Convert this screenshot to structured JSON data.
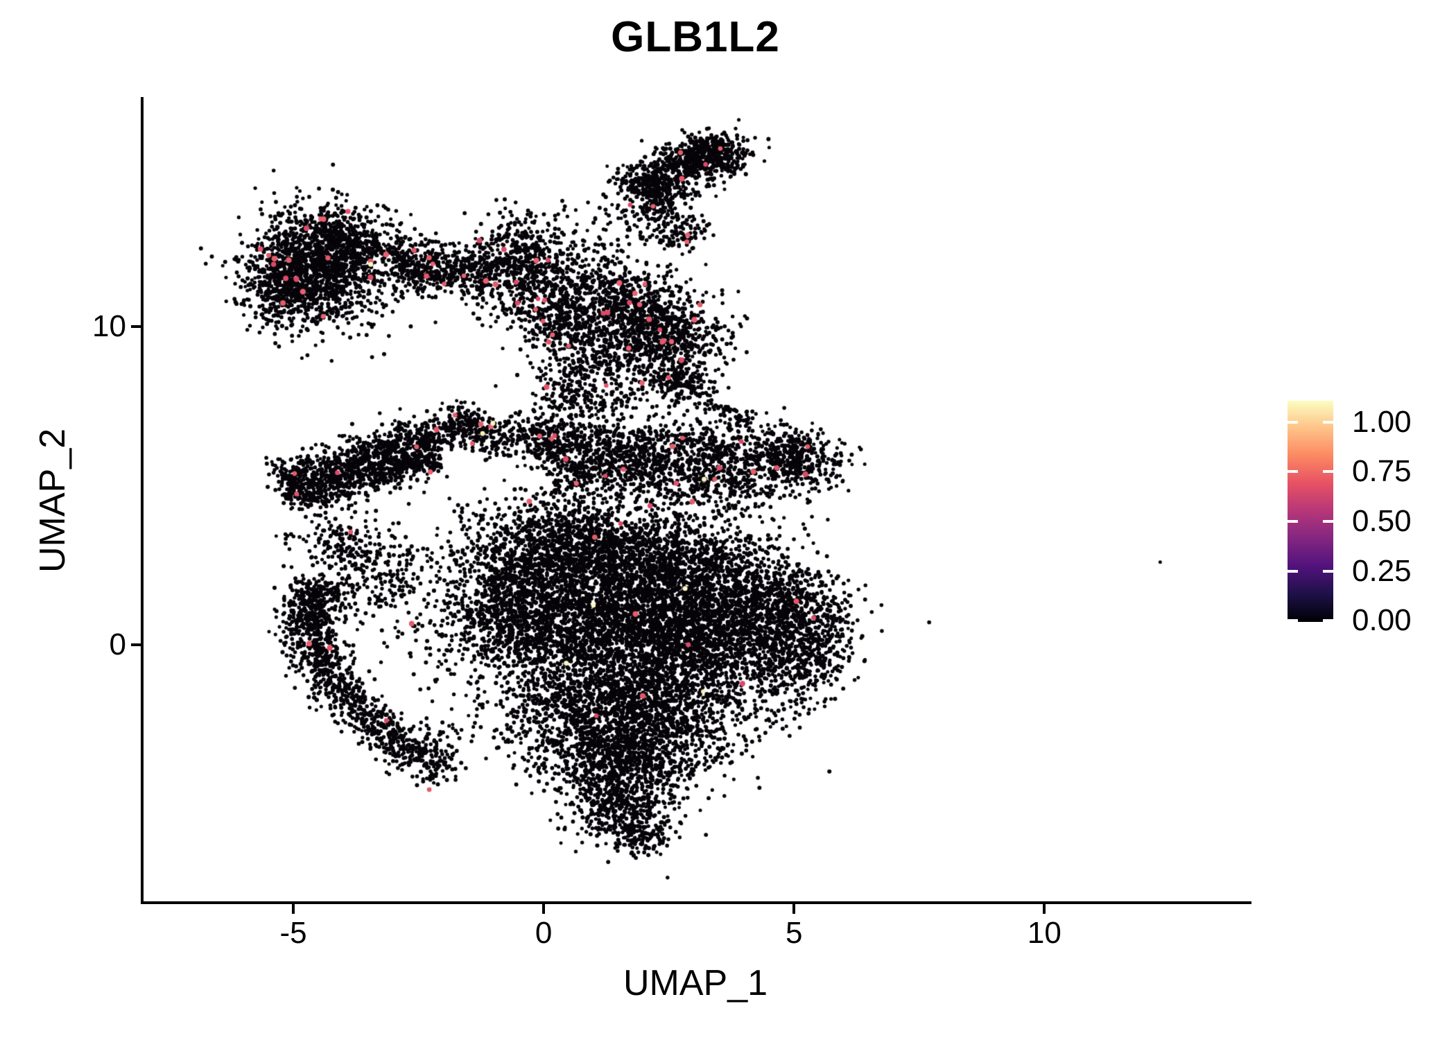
{
  "chart_data": {
    "type": "scatter",
    "title": "GLB1L2",
    "xlabel": "UMAP_1",
    "ylabel": "UMAP_2",
    "xlim": [
      -8.02,
      14.08
    ],
    "ylim": [
      -8.1,
      17.17
    ],
    "grid": false,
    "x_ticks": [
      {
        "label": "-5",
        "value": -5
      },
      {
        "label": "0",
        "value": 0
      },
      {
        "label": "5",
        "value": 5
      },
      {
        "label": "10",
        "value": 10
      }
    ],
    "y_ticks": [
      {
        "label": "10",
        "value": 10
      },
      {
        "label": "0",
        "value": 0
      }
    ],
    "legend": {
      "position": "right",
      "colormap": "magma",
      "gradient_stops": [
        "#000004",
        "#1D1147",
        "#51127C",
        "#822681",
        "#B63679",
        "#E65164",
        "#FB8861",
        "#FEC287",
        "#FCFDBF"
      ],
      "tick_color": "#FFFFFF",
      "ticks": [
        {
          "label": "1.00",
          "value": 1.0
        },
        {
          "label": "0.75",
          "value": 0.75
        },
        {
          "label": "0.50",
          "value": 0.5
        },
        {
          "label": "0.25",
          "value": 0.25
        },
        {
          "label": "0.00",
          "value": 0.0
        }
      ]
    },
    "point_style": {
      "base_color": "#060409",
      "base_radius": 2.7,
      "accent_pink_colors": [
        "#E8546B",
        "#DE4968",
        "#EC5F72",
        "#E35D6A"
      ],
      "accent_yellow_colors": [
        "#F8F1B3",
        "#FCF6C0"
      ],
      "accent_pink_count": 112,
      "accent_yellow_count": 8
    },
    "seed": 42,
    "approx_cells": 23000,
    "clusters": [
      {
        "name": "topleft-blob",
        "kind": "gauss",
        "cx": -4.55,
        "cy": 11.9,
        "sx": 0.7,
        "sy": 0.92,
        "n": 1500,
        "pw": 22,
        "yw": 1
      },
      {
        "name": "topleft-fringe-left",
        "kind": "gauss",
        "cx": -5.25,
        "cy": 11.15,
        "sx": 0.38,
        "sy": 0.5,
        "n": 200,
        "pw": 2,
        "yw": 0
      },
      {
        "name": "topleft-fringe-top",
        "kind": "gauss",
        "cx": -3.85,
        "cy": 12.55,
        "sx": 0.5,
        "sy": 0.5,
        "n": 260,
        "pw": 3,
        "yw": 0
      },
      {
        "name": "trail-band",
        "kind": "band",
        "x1": -3.05,
        "y1": 12.35,
        "x2": -1.1,
        "y2": 11.55,
        "s": 0.33,
        "n": 380,
        "pw": 6,
        "yw": 0
      },
      {
        "name": "trail-blob",
        "kind": "gauss",
        "cx": -2.5,
        "cy": 11.5,
        "sx": 0.32,
        "sy": 0.3,
        "n": 130,
        "pw": 1,
        "yw": 0
      },
      {
        "name": "mid-cluster",
        "kind": "gauss",
        "cx": -0.45,
        "cy": 11.9,
        "sx": 0.55,
        "sy": 0.78,
        "n": 650,
        "pw": 8,
        "yw": 0
      },
      {
        "name": "mid-descender",
        "kind": "band",
        "x1": -0.05,
        "y1": 10.75,
        "x2": 0.6,
        "y2": 9.3,
        "s": 0.38,
        "n": 220,
        "pw": 3,
        "yw": 0
      },
      {
        "name": "mid-right-sparse",
        "kind": "gauss",
        "cx": 0.85,
        "cy": 11.7,
        "sx": 0.42,
        "sy": 0.55,
        "n": 90,
        "pw": 1,
        "yw": 0
      },
      {
        "name": "hat-band",
        "kind": "band",
        "x1": 1.75,
        "y1": 14.35,
        "x2": 3.55,
        "y2": 15.5,
        "s": 0.34,
        "n": 560,
        "pw": 3,
        "yw": 0
      },
      {
        "name": "hat-blob",
        "kind": "gauss",
        "cx": 3.35,
        "cy": 15.45,
        "sx": 0.42,
        "sy": 0.33,
        "n": 260,
        "pw": 1,
        "yw": 0
      },
      {
        "name": "hat-arm",
        "kind": "band",
        "x1": 2.0,
        "y1": 14.55,
        "x2": 2.55,
        "y2": 13.85,
        "s": 0.25,
        "n": 130,
        "pw": 1,
        "yw": 0
      },
      {
        "name": "hat-trail",
        "kind": "band",
        "x1": 2.05,
        "y1": 13.75,
        "x2": 2.95,
        "y2": 12.65,
        "s": 0.3,
        "n": 170,
        "pw": 2,
        "yw": 0
      },
      {
        "name": "above-mid-sparse",
        "kind": "gauss",
        "cx": 1.3,
        "cy": 13.2,
        "sx": 0.5,
        "sy": 0.6,
        "n": 60,
        "pw": 0,
        "yw": 0
      },
      {
        "name": "neck-main",
        "kind": "gauss",
        "cx": 2.35,
        "cy": 9.7,
        "sx": 0.6,
        "sy": 0.85,
        "n": 850,
        "pw": 10,
        "yw": 1
      },
      {
        "name": "neck-top",
        "kind": "gauss",
        "cx": 1.6,
        "cy": 10.85,
        "sx": 0.45,
        "sy": 0.6,
        "n": 300,
        "pw": 4,
        "yw": 0
      },
      {
        "name": "neck-left-spray",
        "kind": "gauss",
        "cx": 0.9,
        "cy": 10.2,
        "sx": 0.55,
        "sy": 0.9,
        "n": 280,
        "pw": 3,
        "yw": 0
      },
      {
        "name": "neck-bridge-down",
        "kind": "band",
        "x1": 2.4,
        "y1": 8.6,
        "x2": 3.15,
        "y2": 7.85,
        "s": 0.3,
        "n": 150,
        "pw": 2,
        "yw": 0
      },
      {
        "name": "neck-streak",
        "kind": "band",
        "x1": 3.25,
        "y1": 7.6,
        "x2": 4.05,
        "y2": 7.05,
        "s": 0.12,
        "n": 55,
        "pw": 0,
        "yw": 0
      },
      {
        "name": "mid-neck-bridge",
        "kind": "band",
        "x1": 0.55,
        "y1": 8.8,
        "x2": 1.05,
        "y2": 7.3,
        "s": 0.5,
        "n": 260,
        "pw": 2,
        "yw": 0
      },
      {
        "name": "wing-band-upper",
        "kind": "band",
        "x1": -5.1,
        "y1": 5.1,
        "x2": -1.4,
        "y2": 7.0,
        "s": 0.33,
        "n": 950,
        "pw": 10,
        "yw": 2
      },
      {
        "name": "wing-band-lower",
        "kind": "band",
        "x1": -4.95,
        "y1": 4.65,
        "x2": -2.2,
        "y2": 5.9,
        "s": 0.28,
        "n": 550,
        "pw": 5,
        "yw": 0
      },
      {
        "name": "wing-bridge",
        "kind": "band",
        "x1": -1.3,
        "y1": 6.5,
        "x2": 0.2,
        "y2": 6.6,
        "s": 0.33,
        "n": 230,
        "pw": 3,
        "yw": 1
      },
      {
        "name": "upper-band",
        "kind": "band",
        "x1": 0.0,
        "y1": 6.3,
        "x2": 5.0,
        "y2": 6.1,
        "s": 0.45,
        "n": 950,
        "pw": 12,
        "yw": 1
      },
      {
        "name": "upper-band-tip",
        "kind": "gauss",
        "cx": 5.15,
        "cy": 5.75,
        "sx": 0.42,
        "sy": 0.5,
        "n": 300,
        "pw": 3,
        "yw": 0
      },
      {
        "name": "upper-band-lower",
        "kind": "band",
        "x1": 0.3,
        "y1": 5.55,
        "x2": 4.3,
        "y2": 5.0,
        "s": 0.5,
        "n": 750,
        "pw": 6,
        "yw": 1
      },
      {
        "name": "central-a",
        "kind": "gauss",
        "cx": 0.5,
        "cy": 3.1,
        "sx": 1.1,
        "sy": 0.75,
        "n": 1300,
        "pw": 5,
        "yw": 0
      },
      {
        "name": "central-b",
        "kind": "gauss",
        "cx": 2.6,
        "cy": 2.4,
        "sx": 1.1,
        "sy": 0.9,
        "n": 1400,
        "pw": 5,
        "yw": 1
      },
      {
        "name": "central-c",
        "kind": "gauss",
        "cx": 0.9,
        "cy": 0.6,
        "sx": 1.5,
        "sy": 1.0,
        "n": 2400,
        "pw": 3,
        "yw": 1
      },
      {
        "name": "central-d",
        "kind": "gauss",
        "cx": 3.5,
        "cy": 0.3,
        "sx": 1.2,
        "sy": 1.0,
        "n": 1600,
        "pw": 2,
        "yw": 1
      },
      {
        "name": "central-right-bulge",
        "kind": "gauss",
        "cx": 5.25,
        "cy": 0.1,
        "sx": 0.5,
        "sy": 0.85,
        "n": 450,
        "pw": 1,
        "yw": 0
      },
      {
        "name": "central-e",
        "kind": "gauss",
        "cx": 1.8,
        "cy": -1.9,
        "sx": 1.3,
        "sy": 0.85,
        "n": 1700,
        "pw": 2,
        "yw": 1
      },
      {
        "name": "central-f",
        "kind": "gauss",
        "cx": 1.6,
        "cy": -3.6,
        "sx": 0.85,
        "sy": 0.7,
        "n": 900,
        "pw": 1,
        "yw": 0
      },
      {
        "name": "central-tip",
        "kind": "gauss",
        "cx": 1.5,
        "cy": -5.1,
        "sx": 0.5,
        "sy": 0.55,
        "n": 400,
        "pw": 0,
        "yw": 0
      },
      {
        "name": "central-tip2",
        "kind": "gauss",
        "cx": 2.0,
        "cy": -6.0,
        "sx": 0.3,
        "sy": 0.3,
        "n": 120,
        "pw": 0,
        "yw": 0
      },
      {
        "name": "central-left",
        "kind": "gauss",
        "cx": -0.6,
        "cy": 1.5,
        "sx": 0.6,
        "sy": 0.9,
        "n": 500,
        "pw": 2,
        "yw": 0
      },
      {
        "name": "central-ne",
        "kind": "gauss",
        "cx": 4.6,
        "cy": 1.5,
        "sx": 0.6,
        "sy": 0.6,
        "n": 350,
        "pw": 1,
        "yw": 0
      },
      {
        "name": "crescent",
        "kind": "path",
        "pts": [
          [
            -4.5,
            1.9
          ],
          [
            -4.75,
            0.7
          ],
          [
            -4.5,
            -0.45
          ],
          [
            -4.0,
            -1.55
          ],
          [
            -3.35,
            -2.55
          ],
          [
            -2.6,
            -3.45
          ],
          [
            -2.05,
            -4.15
          ]
        ],
        "s": 0.3,
        "n": 1150,
        "pw": 3,
        "yw": 0
      },
      {
        "name": "crescent-upper-sparse",
        "kind": "gauss",
        "cx": -4.05,
        "cy": 2.9,
        "sx": 0.45,
        "sy": 0.75,
        "n": 220,
        "pw": 1,
        "yw": 0
      },
      {
        "name": "left-gap-sparse",
        "kind": "gauss",
        "cx": -3.05,
        "cy": 2.1,
        "sx": 0.5,
        "sy": 0.65,
        "n": 150,
        "pw": 1,
        "yw": 0
      },
      {
        "name": "crescent-tail-sparse",
        "kind": "gauss",
        "cx": -2.25,
        "cy": -3.2,
        "sx": 0.5,
        "sy": 0.5,
        "n": 80,
        "pw": 0,
        "yw": 0
      },
      {
        "name": "outlier-dot",
        "kind": "gauss",
        "cx": 12.3,
        "cy": 2.6,
        "sx": 0.01,
        "sy": 0.01,
        "n": 1,
        "pw": 0,
        "yw": 0
      }
    ]
  }
}
